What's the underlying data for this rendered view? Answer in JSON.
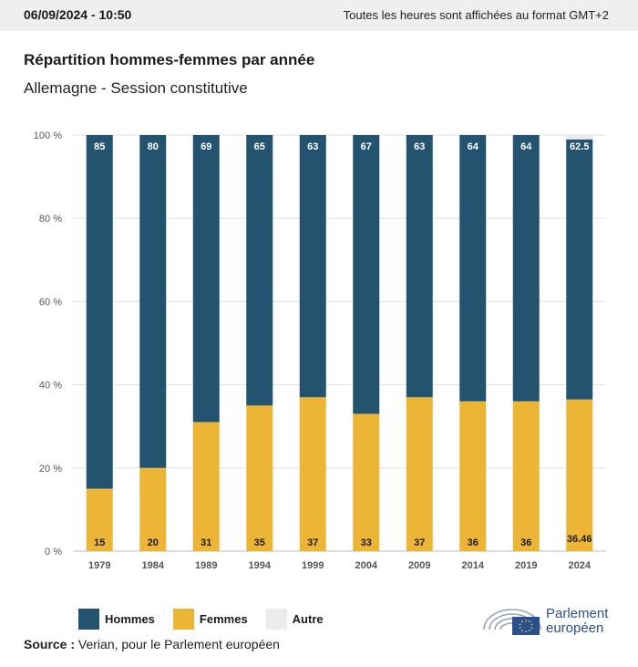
{
  "header": {
    "datetime": "06/09/2024 - 10:50",
    "timezone_note": "Toutes les heures sont affichées au format GMT+2"
  },
  "title": "Répartition hommes-femmes par année",
  "subtitle": "Allemagne - Session constitutive",
  "source": {
    "label": "Source :",
    "text": "Verian, pour le Parlement européen"
  },
  "logo": {
    "line1": "Parlement",
    "line2": "européen"
  },
  "legend": [
    {
      "label": "Hommes",
      "color": "#24536f"
    },
    {
      "label": "Femmes",
      "color": "#ecb535"
    },
    {
      "label": "Autre",
      "color": "#ececec"
    }
  ],
  "chart_data": {
    "type": "bar",
    "stacked": true,
    "categories": [
      "1979",
      "1984",
      "1989",
      "1994",
      "1999",
      "2004",
      "2009",
      "2014",
      "2019",
      "2024"
    ],
    "series": [
      {
        "name": "Femmes",
        "color": "#ecb535",
        "values": [
          15,
          20,
          31,
          35,
          37,
          33,
          37,
          36,
          36,
          36.46
        ],
        "labels": [
          "15",
          "20",
          "31",
          "35",
          "37",
          "33",
          "37",
          "36",
          "36",
          "36.46"
        ]
      },
      {
        "name": "Hommes",
        "color": "#24536f",
        "values": [
          85,
          80,
          69,
          65,
          63,
          67,
          63,
          64,
          64,
          62.5
        ],
        "labels": [
          "85",
          "80",
          "69",
          "65",
          "63",
          "67",
          "63",
          "64",
          "64",
          "62.5"
        ]
      },
      {
        "name": "Autre",
        "color": "#ececec",
        "values": [
          0,
          0,
          0,
          0,
          0,
          0,
          0,
          0,
          0,
          1.04
        ]
      }
    ],
    "y_ticks": [
      0,
      20,
      40,
      60,
      80,
      100
    ],
    "y_tick_labels": [
      "0 %",
      "20 %",
      "40 %",
      "60 %",
      "80 %",
      "100 %"
    ],
    "ylim": [
      0,
      100
    ],
    "grid": true,
    "legend_position": "bottom-left"
  }
}
